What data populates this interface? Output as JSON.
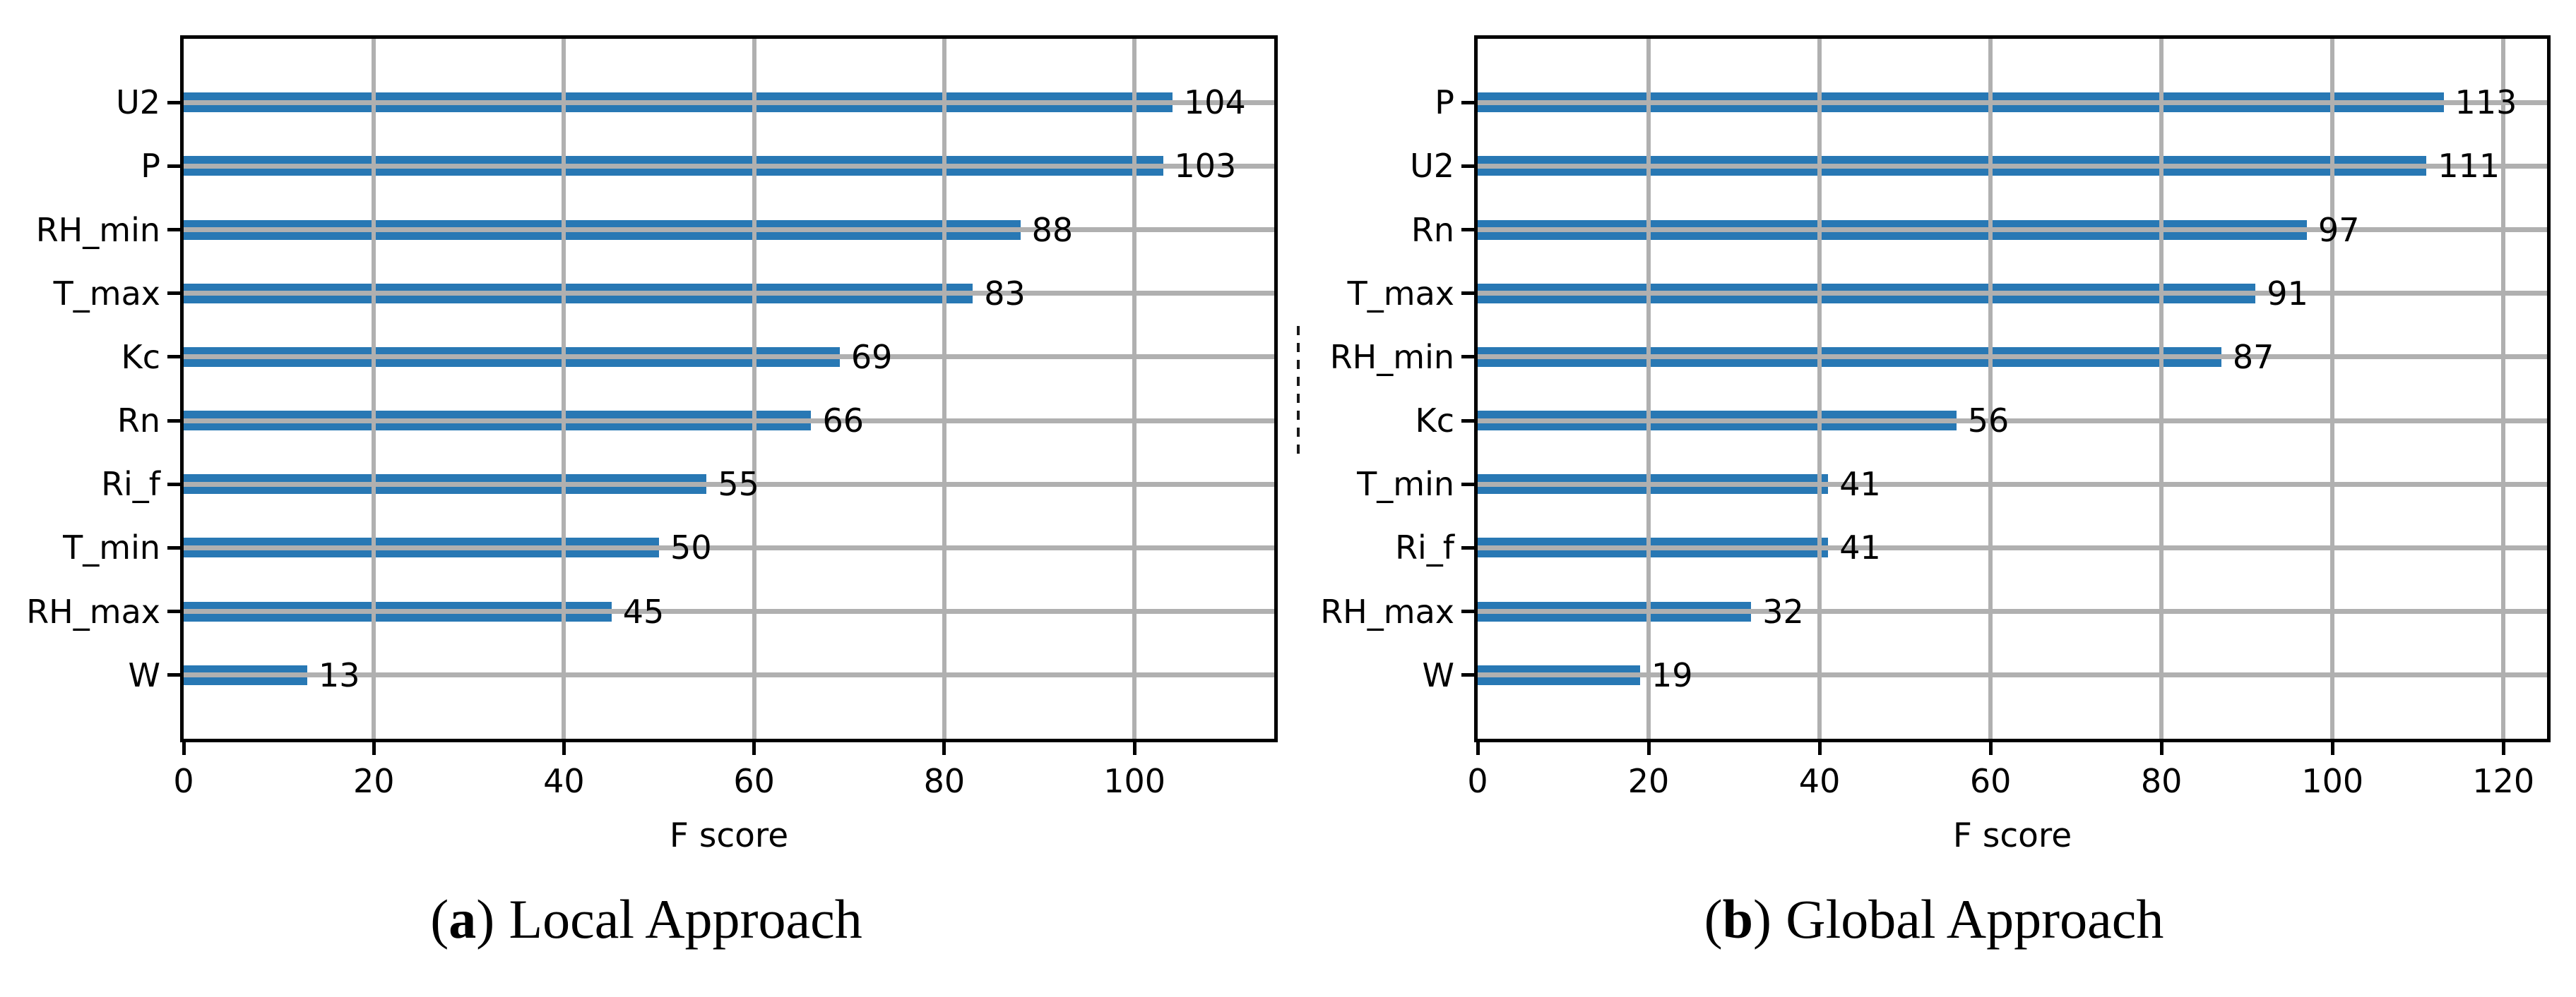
{
  "figure": {
    "background": "#ffffff",
    "bar_color": "#2878b4",
    "grid_color": "#b0b0b0",
    "spine_color": "#000000",
    "text_color": "#000000"
  },
  "chart_data": [
    {
      "type": "bar",
      "orientation": "horizontal",
      "xlabel": "F score",
      "categories": [
        "U2",
        "P",
        "RH_min",
        "T_max",
        "Kc",
        "Rn",
        "Ri_f",
        "T_min",
        "RH_max",
        "W"
      ],
      "values": [
        104,
        103,
        88,
        83,
        69,
        66,
        55,
        50,
        45,
        13
      ],
      "bar_value_labels": [
        104,
        103,
        88,
        83,
        69,
        66,
        55,
        50,
        45,
        13
      ],
      "xticks": [
        0,
        20,
        40,
        60,
        80,
        100
      ],
      "xlim": [
        0,
        114.7
      ],
      "grid": true,
      "grid_over_bars": true,
      "caption": {
        "open": "(",
        "letter": "a",
        "close": ")",
        "text": "Local Approach"
      }
    },
    {
      "type": "bar",
      "orientation": "horizontal",
      "xlabel": "F score",
      "categories": [
        "P",
        "U2",
        "Rn",
        "T_max",
        "RH_min",
        "Kc",
        "T_min",
        "Ri_f",
        "RH_max",
        "W"
      ],
      "values": [
        113,
        111,
        97,
        91,
        87,
        56,
        41,
        41,
        32,
        19
      ],
      "bar_value_labels": [
        113,
        111,
        97,
        91,
        87,
        56,
        41,
        41,
        32,
        19
      ],
      "xticks": [
        0,
        20,
        40,
        60,
        80,
        100,
        120
      ],
      "xlim": [
        0,
        125.1
      ],
      "grid": true,
      "grid_over_bars": true,
      "caption": {
        "open": "(",
        "letter": "b",
        "close": ")",
        "text": "Global Approach"
      }
    }
  ]
}
